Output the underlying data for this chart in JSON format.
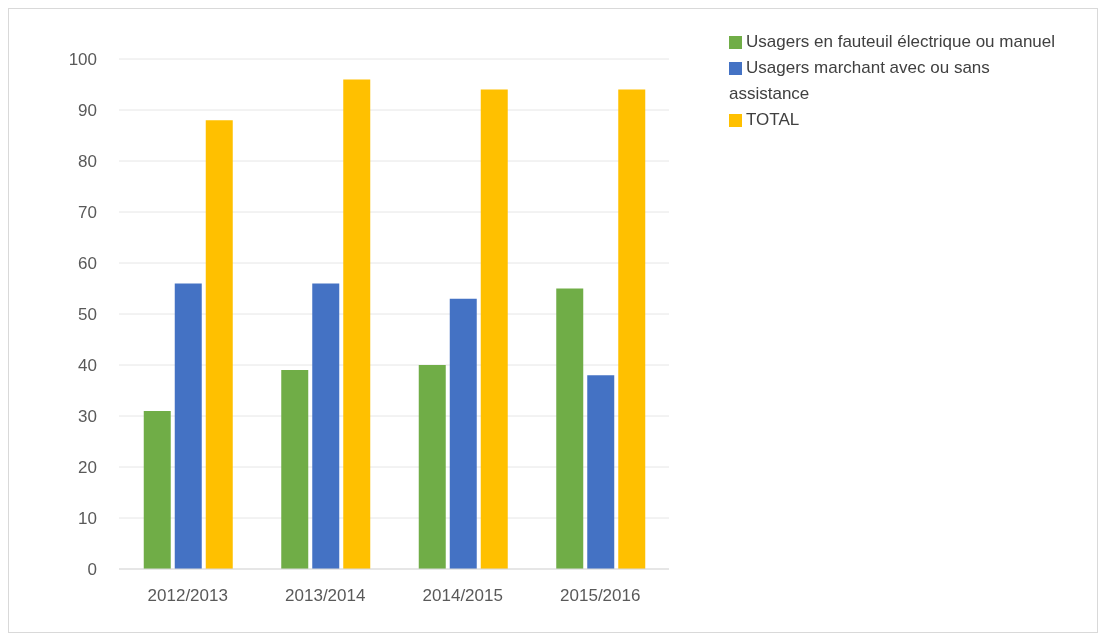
{
  "chart_data": {
    "type": "bar",
    "categories": [
      "2012/2013",
      "2013/2014",
      "2014/2015",
      "2015/2016"
    ],
    "series": [
      {
        "name": "Usagers en fauteuil électrique ou manuel",
        "color": "#70ad47",
        "values": [
          31,
          39,
          40,
          55
        ]
      },
      {
        "name": "Usagers marchant avec ou sans assistance",
        "color": "#4472c4",
        "values": [
          56,
          56,
          53,
          38
        ]
      },
      {
        "name": "TOTAL",
        "color": "#ffc000",
        "values": [
          88,
          96,
          94,
          94
        ]
      }
    ],
    "ylim": [
      0,
      100
    ],
    "yticks": [
      0,
      10,
      20,
      30,
      40,
      50,
      60,
      70,
      80,
      90,
      100
    ],
    "grid": "y",
    "legend": "top right"
  }
}
